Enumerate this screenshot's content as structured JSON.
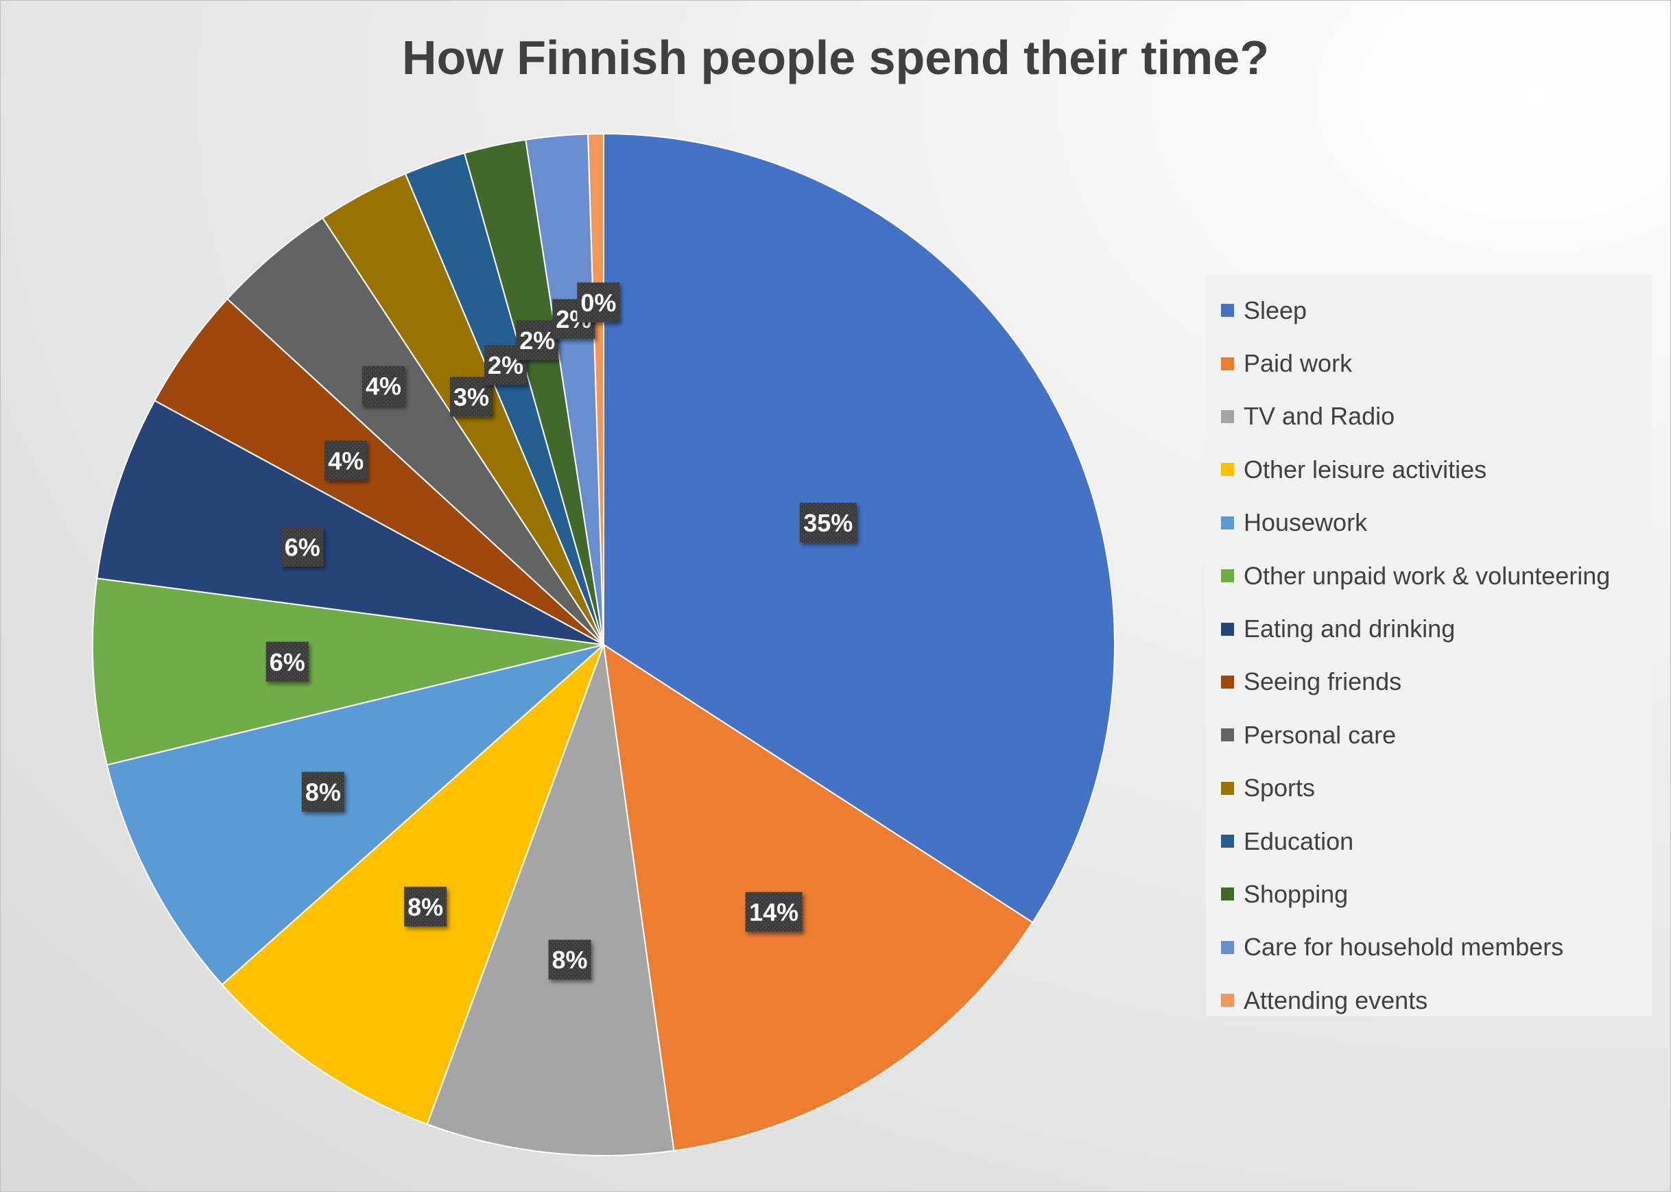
{
  "chart_data": {
    "type": "pie",
    "title": "How Finnish people spend their time?",
    "legend_position": "right",
    "slices": [
      {
        "label": "Sleep",
        "value": 35,
        "data_label": "35%",
        "color": "#4472C4"
      },
      {
        "label": "Paid work",
        "value": 14,
        "data_label": "14%",
        "color": "#ED7D31"
      },
      {
        "label": "TV and Radio",
        "value": 8,
        "data_label": "8%",
        "color": "#A5A5A5"
      },
      {
        "label": "Other leisure activities",
        "value": 8,
        "data_label": "8%",
        "color": "#FFC000"
      },
      {
        "label": "Housework",
        "value": 8,
        "data_label": "8%",
        "color": "#5B9BD5"
      },
      {
        "label": "Other unpaid work & volunteering",
        "value": 6,
        "data_label": "6%",
        "color": "#70AD47"
      },
      {
        "label": "Eating and drinking",
        "value": 6,
        "data_label": "6%",
        "color": "#264478"
      },
      {
        "label": "Seeing friends",
        "value": 4,
        "data_label": "4%",
        "color": "#9E480E"
      },
      {
        "label": "Personal care",
        "value": 4,
        "data_label": "4%",
        "color": "#636363"
      },
      {
        "label": "Sports",
        "value": 3,
        "data_label": "3%",
        "color": "#997300"
      },
      {
        "label": "Education",
        "value": 2,
        "data_label": "2%",
        "color": "#255E91"
      },
      {
        "label": "Shopping",
        "value": 2,
        "data_label": "2%",
        "color": "#43682B"
      },
      {
        "label": "Care for household members",
        "value": 2,
        "data_label": "2%",
        "color": "#698ED0"
      },
      {
        "label": "Attending events",
        "value": 0.5,
        "data_label": "0%",
        "color": "#F1975A"
      }
    ]
  }
}
